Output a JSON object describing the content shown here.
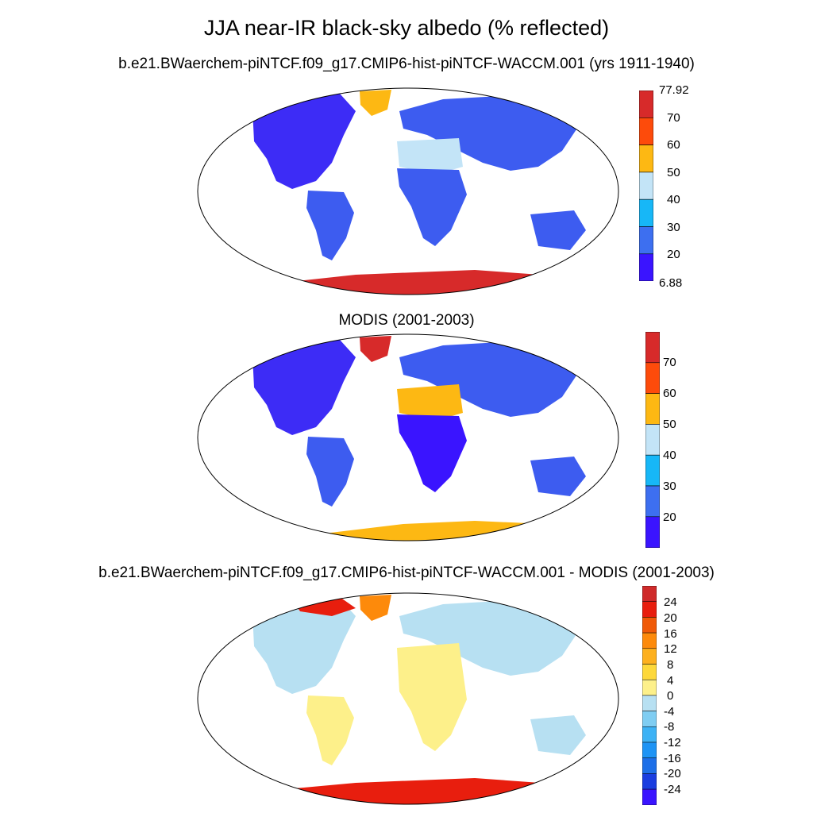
{
  "figure": {
    "title": "JJA near-IR black-sky albedo (% reflected)"
  },
  "panels": [
    {
      "title": "b.e21.BWaerchem-piNTCF.f09_g17.CMIP6-hist-piNTCF-WACCM.001 (yrs 1911-1940)",
      "colorbar": {
        "colors": [
          "#3a14ff",
          "#3d6ff0",
          "#17b7f7",
          "#c3e4f7",
          "#fdb813",
          "#fd4b0b",
          "#d72a2a"
        ],
        "labels": [
          "6.88",
          "20",
          "30",
          "40",
          "50",
          "60",
          "70",
          "77.92"
        ]
      }
    },
    {
      "title": "MODIS (2001-2003)",
      "colorbar": {
        "colors": [
          "#3a14ff",
          "#3d6ff0",
          "#17b7f7",
          "#c3e4f7",
          "#fdb813",
          "#fd4b0b",
          "#d72a2a"
        ],
        "labels": [
          "20",
          "30",
          "40",
          "50",
          "60",
          "70"
        ]
      }
    },
    {
      "title": "b.e21.BWaerchem-piNTCF.f09_g17.CMIP6-hist-piNTCF-WACCM.001 - MODIS (2001-2003)",
      "colorbar": {
        "colors": [
          "#3a14ff",
          "#1a3de0",
          "#1d6fe8",
          "#1e94f5",
          "#3db2f5",
          "#7fcdf2",
          "#b7e0f2",
          "#fdf08a",
          "#fdd83a",
          "#fdb01e",
          "#fd8a0b",
          "#f05a08",
          "#e81e0e",
          "#cf2a2a"
        ],
        "labels": [
          "24",
          "20",
          "16",
          "12",
          "8",
          "4",
          "0",
          "-4",
          "-8",
          "-12",
          "-16",
          "-20",
          "-24"
        ]
      }
    }
  ]
}
